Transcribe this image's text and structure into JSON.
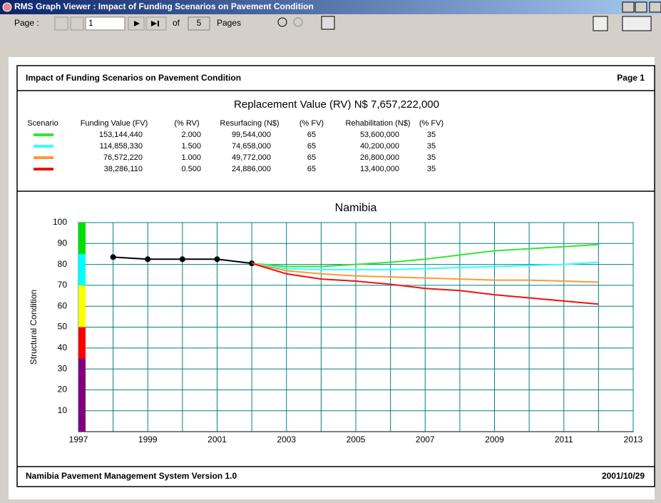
{
  "window": {
    "title": "RMS Graph Viewer : Impact of Funding Scenarios on Pavement Condition"
  },
  "toolbar": {
    "page_label": "Page :",
    "page_value": "1",
    "of": "of",
    "total": "5",
    "pages": "Pages"
  },
  "report": {
    "title": "Impact of Funding Scenarios on Pavement Condition",
    "page": "Page 1",
    "replacement": "Replacement Value (RV)  N$ 7,657,222,000",
    "footer_left": "Namibia Pavement Management System Version 1.0",
    "footer_right": "2001/10/29"
  },
  "table": {
    "header": [
      "Scenario",
      "Funding Value (FV)",
      "(% RV)",
      "Resurfacing (N$)",
      "(% FV)",
      "Rehabilitation (N$)",
      "(% FV)"
    ],
    "rows": [
      [
        "153,144,440",
        "2.000",
        "99,544,000",
        "65",
        "53,600,000",
        "35"
      ],
      [
        "114,858,330",
        "1.500",
        "74,658,000",
        "65",
        "40,200,000",
        "35"
      ],
      [
        "76,572,220",
        "1.000",
        "49,772,000",
        "65",
        "26,800,000",
        "35"
      ],
      [
        "38,286,110",
        "0.500",
        "24,886,000",
        "65",
        "13,400,000",
        "35"
      ]
    ]
  },
  "chart_data": {
    "type": "line",
    "title": "Namibia",
    "ylabel": "Structural Condition",
    "xlim": [
      1997,
      2013
    ],
    "xticks": [
      1997,
      1999,
      2001,
      2003,
      2005,
      2007,
      2009,
      2011,
      2013
    ],
    "xminor_ticks": [
      1998,
      2000,
      2002,
      2004,
      2006,
      2008,
      2010,
      2012
    ],
    "ylim": [
      0,
      100
    ],
    "yticks": [
      10,
      20,
      30,
      40,
      50,
      60,
      70,
      80,
      90,
      100
    ],
    "grid": true,
    "bands": [
      {
        "from": 0,
        "to": 35,
        "color": "#800080"
      },
      {
        "from": 35,
        "to": 50,
        "color": "#ff0000"
      },
      {
        "from": 50,
        "to": 70,
        "color": "#ffff00"
      },
      {
        "from": 70,
        "to": 85,
        "color": "#00ffff"
      },
      {
        "from": 85,
        "to": 100,
        "color": "#00e000"
      }
    ],
    "series": [
      {
        "color": "#000000",
        "markers": true,
        "x": [
          1998,
          1999,
          2000,
          2001,
          2002
        ],
        "values": [
          83.5,
          82.5,
          82.5,
          82.5,
          80.5
        ]
      },
      {
        "color": "#33e633",
        "x": [
          2002,
          2003,
          2004,
          2005,
          2006,
          2007,
          2008,
          2009,
          2010,
          2011,
          2012
        ],
        "values": [
          80.5,
          79,
          79,
          80,
          81,
          82.5,
          84.5,
          86.5,
          87.5,
          88.5,
          89.5
        ]
      },
      {
        "color": "#33ffff",
        "x": [
          2002,
          2003,
          2004,
          2005,
          2006,
          2007,
          2008,
          2009,
          2010,
          2011,
          2012
        ],
        "values": [
          80.5,
          78,
          77.5,
          77.5,
          77.5,
          78,
          78.5,
          79,
          79.5,
          80,
          81
        ]
      },
      {
        "color": "#ff9933",
        "x": [
          2002,
          2003,
          2004,
          2005,
          2006,
          2007,
          2008,
          2009,
          2010,
          2011,
          2012
        ],
        "values": [
          80.5,
          77,
          75.5,
          74.5,
          74,
          73.5,
          73,
          72.5,
          72.5,
          72,
          71.5
        ]
      },
      {
        "color": "#ee1111",
        "x": [
          2002,
          2003,
          2004,
          2005,
          2006,
          2007,
          2008,
          2009,
          2010,
          2011,
          2012
        ],
        "values": [
          80.5,
          75.5,
          73,
          72,
          70.5,
          68.5,
          67.5,
          65.5,
          64,
          62.5,
          61
        ]
      }
    ]
  }
}
